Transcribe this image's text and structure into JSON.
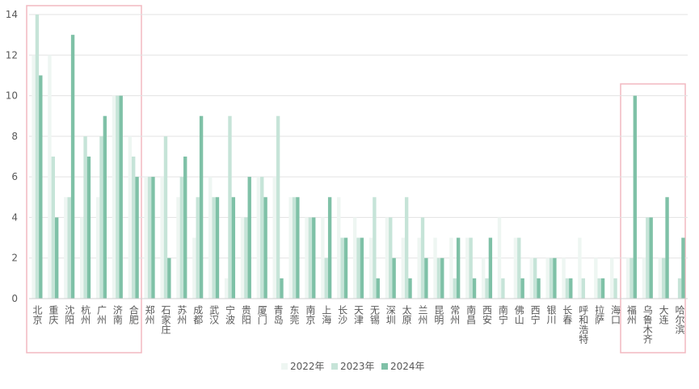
{
  "chart_data": {
    "type": "bar",
    "categories": [
      "北京",
      "重庆",
      "沈阳",
      "杭州",
      "广州",
      "济南",
      "合肥",
      "郑州",
      "石家庄",
      "苏州",
      "成都",
      "武汉",
      "宁波",
      "贵阳",
      "厦门",
      "青岛",
      "东莞",
      "南京",
      "上海",
      "长沙",
      "天津",
      "无锡",
      "深圳",
      "太原",
      "兰州",
      "昆明",
      "常州",
      "南昌",
      "西安",
      "南宁",
      "佛山",
      "西宁",
      "银川",
      "长春",
      "呼和浩特",
      "拉萨",
      "海口",
      "福州",
      "乌鲁木齐",
      "大连",
      "哈尔滨"
    ],
    "series": [
      {
        "name": "2022年",
        "color": "#eef6f2",
        "values": [
          12,
          12,
          5,
          4,
          5,
          10,
          8,
          6,
          6,
          5,
          3,
          6,
          1,
          4,
          6,
          6,
          5,
          4,
          4,
          5,
          4,
          3,
          4,
          3,
          3,
          3,
          3,
          3,
          2,
          4,
          3,
          2,
          2,
          2,
          3,
          2,
          2,
          2,
          2,
          2,
          0
        ]
      },
      {
        "name": "2023年",
        "color": "#c6e4d8",
        "values": [
          14,
          7,
          5,
          8,
          8,
          10,
          7,
          6,
          8,
          6,
          5,
          5,
          9,
          4,
          6,
          9,
          5,
          4,
          2,
          3,
          3,
          5,
          4,
          5,
          4,
          2,
          1,
          3,
          1,
          1,
          3,
          2,
          2,
          1,
          1,
          1,
          1,
          2,
          4,
          2,
          1
        ]
      },
      {
        "name": "2024年",
        "color": "#7fc1a7",
        "values": [
          11,
          4,
          13,
          7,
          9,
          10,
          6,
          6,
          2,
          7,
          9,
          5,
          5,
          6,
          5,
          1,
          5,
          4,
          5,
          3,
          3,
          1,
          2,
          1,
          2,
          2,
          3,
          1,
          3,
          0,
          1,
          1,
          2,
          1,
          0,
          1,
          0,
          10,
          4,
          5,
          3
        ]
      }
    ],
    "ylim": [
      0,
      14
    ],
    "yticks": [
      0,
      2,
      4,
      6,
      8,
      10,
      12,
      14
    ],
    "grid": true
  }
}
